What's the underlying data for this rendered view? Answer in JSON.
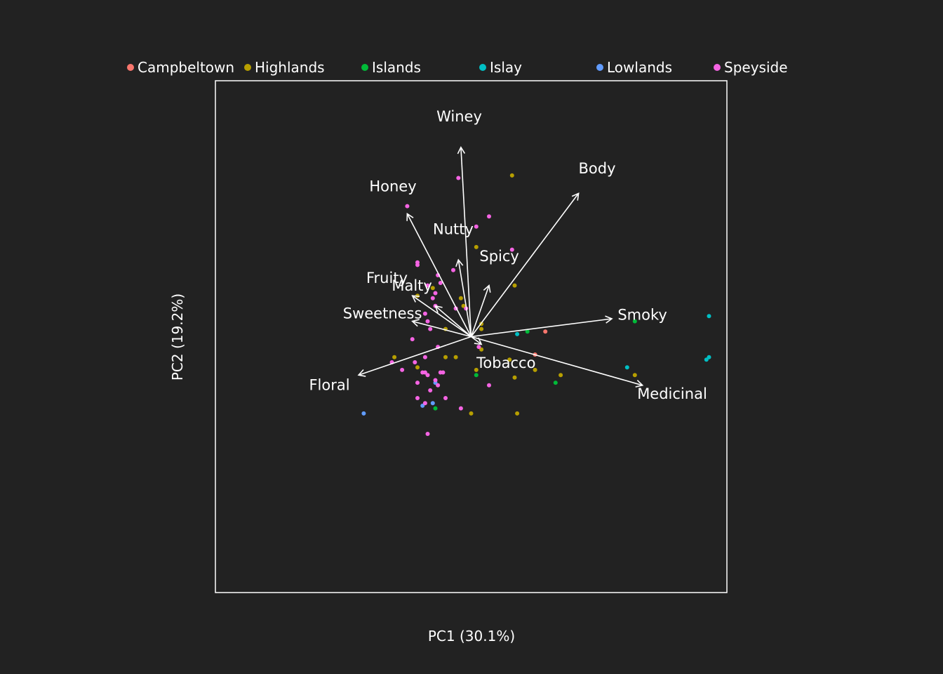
{
  "theme": {
    "background": "#222222",
    "foreground": "#ffffff"
  },
  "chart_data": {
    "type": "scatter",
    "subtype": "pca-biplot",
    "title": "",
    "xlabel": "PC1 (30.1%)",
    "ylabel": "PC2 (19.2%)",
    "xlim": [
      -1,
      1
    ],
    "ylim": [
      -1,
      1
    ],
    "grid": false,
    "legend_position": "top",
    "groups": [
      {
        "name": "Campbeltown",
        "color": "#F8766D"
      },
      {
        "name": "Highlands",
        "color": "#B79F00"
      },
      {
        "name": "Islands",
        "color": "#00BA38"
      },
      {
        "name": "Islay",
        "color": "#00BFC4"
      },
      {
        "name": "Lowlands",
        "color": "#619CFF"
      },
      {
        "name": "Speyside",
        "color": "#F564E3"
      }
    ],
    "loadings": [
      {
        "name": "Winey",
        "x": -0.04,
        "y": 0.74
      },
      {
        "name": "Body",
        "x": 0.42,
        "y": 0.56
      },
      {
        "name": "Honey",
        "x": -0.25,
        "y": 0.48
      },
      {
        "name": "Nutty",
        "x": -0.05,
        "y": 0.3
      },
      {
        "name": "Spicy",
        "x": 0.07,
        "y": 0.2
      },
      {
        "name": "Fruity",
        "x": -0.23,
        "y": 0.16
      },
      {
        "name": "Malty",
        "x": -0.14,
        "y": 0.12
      },
      {
        "name": "Sweetness",
        "x": -0.23,
        "y": 0.06
      },
      {
        "name": "Smoky",
        "x": 0.55,
        "y": 0.07
      },
      {
        "name": "Tobacco",
        "x": 0.04,
        "y": -0.03
      },
      {
        "name": "Medicinal",
        "x": 0.67,
        "y": -0.19
      },
      {
        "name": "Floral",
        "x": -0.44,
        "y": -0.15
      }
    ],
    "series": [
      {
        "name": "Campbeltown",
        "points": [
          [
            0.29,
            0.02
          ],
          [
            0.25,
            -0.07
          ]
        ]
      },
      {
        "name": "Highlands",
        "points": [
          [
            0.16,
            0.63
          ],
          [
            0.02,
            0.35
          ],
          [
            0.17,
            0.2
          ],
          [
            -0.15,
            0.19
          ],
          [
            -0.04,
            0.15
          ],
          [
            -0.21,
            0.16
          ],
          [
            -0.03,
            0.12
          ],
          [
            0.04,
            0.05
          ],
          [
            0.04,
            0.03
          ],
          [
            -0.1,
            0.03
          ],
          [
            0.04,
            -0.05
          ],
          [
            -0.3,
            -0.08
          ],
          [
            -0.1,
            -0.08
          ],
          [
            -0.06,
            -0.08
          ],
          [
            0.15,
            -0.09
          ],
          [
            -0.21,
            -0.12
          ],
          [
            0.02,
            -0.13
          ],
          [
            0.25,
            -0.13
          ],
          [
            0.17,
            -0.16
          ],
          [
            0.35,
            -0.15
          ],
          [
            0.64,
            -0.15
          ],
          [
            0.0,
            -0.3
          ],
          [
            0.18,
            -0.3
          ]
        ]
      },
      {
        "name": "Islands",
        "points": [
          [
            0.64,
            0.06
          ],
          [
            0.22,
            0.02
          ],
          [
            0.02,
            -0.15
          ],
          [
            0.33,
            -0.18
          ],
          [
            -0.14,
            -0.28
          ]
        ]
      },
      {
        "name": "Islay",
        "points": [
          [
            0.93,
            0.08
          ],
          [
            0.93,
            -0.08
          ],
          [
            0.92,
            -0.09
          ],
          [
            0.61,
            -0.12
          ],
          [
            0.18,
            0.01
          ]
        ]
      },
      {
        "name": "Lowlands",
        "points": [
          [
            -0.42,
            -0.3
          ],
          [
            -0.19,
            -0.27
          ],
          [
            -0.15,
            -0.26
          ],
          [
            -0.14,
            -0.18
          ]
        ]
      },
      {
        "name": "Speyside",
        "points": [
          [
            -0.05,
            0.62
          ],
          [
            -0.25,
            0.51
          ],
          [
            0.07,
            0.47
          ],
          [
            0.02,
            0.43
          ],
          [
            0.16,
            0.34
          ],
          [
            -0.21,
            0.29
          ],
          [
            -0.21,
            0.28
          ],
          [
            -0.07,
            0.26
          ],
          [
            -0.13,
            0.24
          ],
          [
            -0.12,
            0.21
          ],
          [
            -0.17,
            0.2
          ],
          [
            -0.14,
            0.17
          ],
          [
            -0.15,
            0.15
          ],
          [
            -0.14,
            0.12
          ],
          [
            -0.06,
            0.11
          ],
          [
            -0.02,
            0.11
          ],
          [
            -0.18,
            0.09
          ],
          [
            -0.17,
            0.06
          ],
          [
            -0.16,
            0.03
          ],
          [
            -0.23,
            -0.01
          ],
          [
            -0.13,
            -0.04
          ],
          [
            0.03,
            -0.04
          ],
          [
            -0.18,
            -0.08
          ],
          [
            -0.22,
            -0.1
          ],
          [
            -0.31,
            -0.1
          ],
          [
            -0.27,
            -0.13
          ],
          [
            -0.19,
            -0.14
          ],
          [
            -0.18,
            -0.14
          ],
          [
            -0.12,
            -0.14
          ],
          [
            -0.11,
            -0.14
          ],
          [
            -0.17,
            -0.15
          ],
          [
            -0.14,
            -0.17
          ],
          [
            -0.21,
            -0.18
          ],
          [
            -0.13,
            -0.19
          ],
          [
            0.07,
            -0.19
          ],
          [
            -0.16,
            -0.21
          ],
          [
            -0.21,
            -0.24
          ],
          [
            -0.1,
            -0.24
          ],
          [
            -0.04,
            -0.28
          ],
          [
            -0.18,
            -0.26
          ],
          [
            -0.17,
            -0.38
          ]
        ]
      }
    ]
  }
}
